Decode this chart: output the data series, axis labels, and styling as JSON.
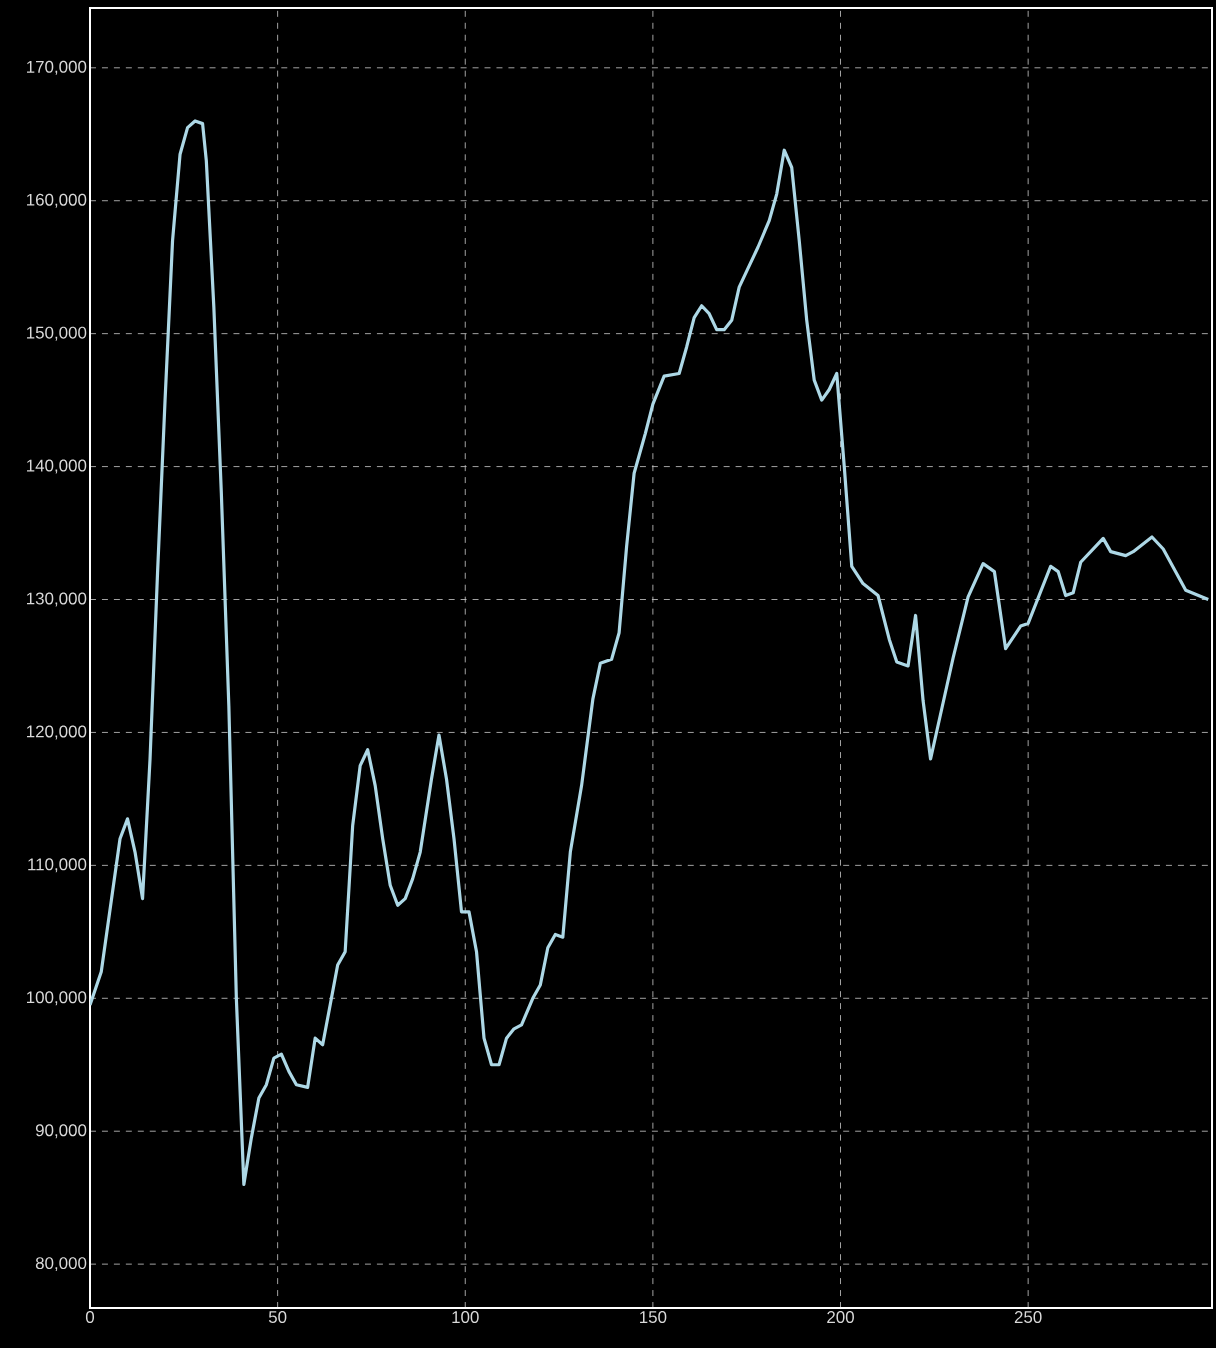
{
  "chart_data": {
    "type": "line",
    "x": [
      0,
      3,
      6,
      8,
      10,
      12,
      14,
      16,
      18,
      20,
      22,
      24,
      26,
      28,
      30,
      31,
      33,
      35,
      37,
      39,
      41,
      43,
      45,
      47,
      49,
      51,
      53,
      55,
      58,
      60,
      62,
      64,
      66,
      68,
      70,
      72,
      74,
      76,
      78,
      80,
      82,
      84,
      86,
      88,
      91,
      93,
      95,
      97,
      99,
      101,
      103,
      105,
      107,
      109,
      111,
      113,
      115,
      118,
      120,
      122,
      124,
      126,
      128,
      131,
      134,
      136,
      139,
      141,
      143,
      145,
      148,
      150,
      153,
      157,
      159,
      161,
      163,
      165,
      167,
      169,
      171,
      173,
      175,
      178,
      181,
      183,
      185,
      187,
      189,
      191,
      193,
      195,
      197,
      199,
      201,
      203,
      206,
      210,
      213,
      215,
      218,
      220,
      222,
      224,
      230,
      234,
      238,
      241,
      244,
      248,
      250,
      256,
      258,
      260,
      262,
      264,
      270,
      272,
      276,
      278,
      283,
      286,
      292,
      298
    ],
    "series": [
      {
        "color": "#add8e6",
        "values": [
          99500,
          102000,
          108000,
          112000,
          113500,
          111000,
          107500,
          118000,
          132000,
          145000,
          157000,
          163500,
          165500,
          166000,
          165800,
          163000,
          152000,
          138000,
          122000,
          100000,
          86000,
          89500,
          92500,
          93500,
          95500,
          95800,
          94500,
          93500,
          93300,
          97000,
          96500,
          99500,
          102500,
          103500,
          113000,
          117500,
          118700,
          116000,
          112000,
          108500,
          107000,
          107500,
          109000,
          111000,
          116500,
          119800,
          116500,
          112000,
          106500,
          106500,
          103500,
          97000,
          95000,
          95000,
          97000,
          97700,
          98000,
          100000,
          101000,
          103800,
          104800,
          104600,
          111000,
          116000,
          122500,
          125200,
          125500,
          127500,
          134000,
          139500,
          142500,
          144700,
          146800,
          147000,
          149000,
          151200,
          152100,
          151500,
          150300,
          150300,
          151000,
          153500,
          154700,
          156500,
          158500,
          160500,
          163800,
          162500,
          157000,
          151000,
          146500,
          145000,
          145800,
          147000,
          140000,
          132500,
          131200,
          130300,
          127000,
          125300,
          125000,
          128800,
          122400,
          118000,
          125600,
          130200,
          132700,
          132100,
          126300,
          128000,
          128200,
          132500,
          132100,
          130300,
          130500,
          132800,
          134600,
          133600,
          133300,
          133600,
          134700,
          133800,
          130700,
          130000
        ]
      }
    ],
    "xlim": [
      0,
      299
    ],
    "ylim": [
      76700,
      174500
    ],
    "xticks": [
      0,
      50,
      100,
      150,
      200,
      250
    ],
    "yticks": [
      {
        "value": 80000,
        "label": "80,000"
      },
      {
        "value": 90000,
        "label": "90,000"
      },
      {
        "value": 100000,
        "label": "100,000"
      },
      {
        "value": 110000,
        "label": "110,000"
      },
      {
        "value": 120000,
        "label": "120,000"
      },
      {
        "value": 130000,
        "label": "130,000"
      },
      {
        "value": 140000,
        "label": "140,000"
      },
      {
        "value": 150000,
        "label": "150,000"
      },
      {
        "value": 160000,
        "label": "160,000"
      },
      {
        "value": 170000,
        "label": "170,000"
      }
    ],
    "grid": true,
    "marker": "none",
    "line_style": "solid"
  }
}
